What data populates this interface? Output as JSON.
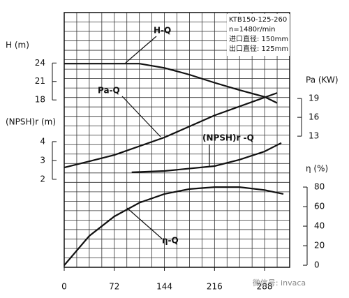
{
  "chart_data": {
    "type": "line",
    "xlim": [
      0,
      324
    ],
    "xticks": [
      0,
      72,
      144,
      216,
      288
    ],
    "info": [
      "KTB150-125-260",
      "n=1480r/min",
      "进口直径: 150mm",
      "出口直径: 125mm"
    ],
    "watermark": "微信号: invaca",
    "y_axes": [
      {
        "label": "H (m)",
        "side": "left",
        "lim": [
          -9.2,
          32.2
        ],
        "ticks": [
          18,
          21,
          24
        ]
      },
      {
        "label": "(NPSH)r (m)",
        "side": "left",
        "lim": [
          -2.67,
          10.85
        ],
        "ticks": [
          2,
          3,
          4
        ]
      },
      {
        "label": "Pa (KW)",
        "side": "right",
        "lim": [
          -7.9,
          32.7
        ],
        "ticks": [
          13,
          16,
          19
        ]
      },
      {
        "label": "η (%)",
        "side": "right",
        "lim": [
          -2.1,
          258.6
        ],
        "ticks": [
          0,
          20,
          40,
          60,
          80
        ]
      }
    ],
    "series": [
      {
        "name": "H-Q",
        "axis": 0,
        "color": "#111",
        "x": [
          0,
          54,
          108,
          144,
          180,
          216,
          252,
          288,
          306
        ],
        "values": [
          23.9,
          23.9,
          23.9,
          23.2,
          22.1,
          20.8,
          19.6,
          18.5,
          17.5
        ]
      },
      {
        "name": "Pa-Q",
        "axis": 2,
        "color": "#111",
        "x": [
          0,
          72,
          144,
          216,
          306
        ],
        "values": [
          8.0,
          10.0,
          12.8,
          16.3,
          19.9
        ]
      },
      {
        "name": "(NPSH)r -Q",
        "axis": 1,
        "color": "#111",
        "x": [
          97,
          144,
          216,
          252,
          288,
          312
        ],
        "values": [
          2.37,
          2.44,
          2.7,
          3.04,
          3.48,
          3.93
        ]
      },
      {
        "name": "η-Q",
        "axis": 3,
        "color": "#111",
        "x": [
          0,
          36,
          72,
          108,
          144,
          180,
          216,
          252,
          288,
          315
        ],
        "values": [
          0,
          30,
          50,
          64,
          73,
          78,
          80,
          80,
          77,
          73
        ]
      }
    ]
  }
}
